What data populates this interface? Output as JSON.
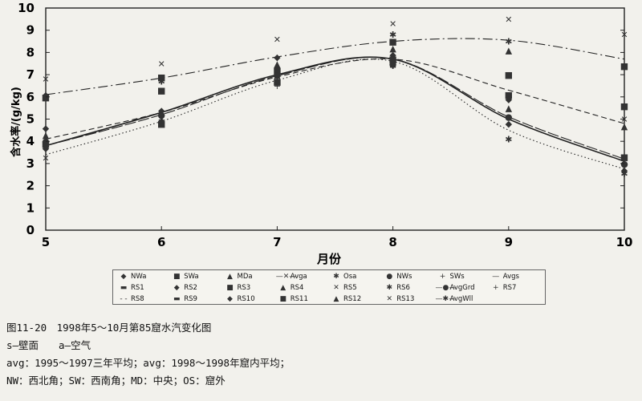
{
  "chart_data": {
    "type": "line",
    "xlabel": "月份",
    "ylabel": "含水率/(g/kg)",
    "x": [
      5,
      6,
      7,
      8,
      9,
      10
    ],
    "xlim": [
      5,
      10
    ],
    "ylim": [
      0,
      10
    ],
    "yticks": [
      0,
      1,
      2,
      3,
      4,
      5,
      6,
      7,
      8,
      9,
      10
    ],
    "xticks": [
      5,
      6,
      7,
      8,
      9,
      10
    ],
    "grid": false,
    "legend_position": "bottom",
    "series": [
      {
        "name": "Avga",
        "style": "dashdot",
        "values": [
          6.1,
          6.85,
          7.8,
          8.5,
          8.55,
          7.7
        ]
      },
      {
        "name": "Avgs",
        "style": "dashed",
        "values": [
          4.1,
          5.3,
          6.9,
          7.7,
          6.3,
          4.8
        ]
      },
      {
        "name": "AvgGrd",
        "style": "solid",
        "values": [
          3.8,
          5.3,
          7.0,
          7.7,
          5.0,
          3.1
        ]
      },
      {
        "name": "AvgWll",
        "style": "longdash",
        "values": [
          3.8,
          5.2,
          6.95,
          7.7,
          5.1,
          3.2
        ]
      },
      {
        "name": "",
        "style": "dotted",
        "values": [
          3.4,
          4.9,
          6.75,
          7.6,
          4.5,
          2.75
        ]
      }
    ],
    "scatter": [
      {
        "x": 5,
        "y": 6.1,
        "m": "◆"
      },
      {
        "x": 5,
        "y": 6.0,
        "m": "■"
      },
      {
        "x": 5,
        "y": 6.8,
        "m": "✕"
      },
      {
        "x": 5,
        "y": 4.6,
        "m": "◆"
      },
      {
        "x": 5,
        "y": 4.3,
        "m": "▲"
      },
      {
        "x": 5,
        "y": 4.0,
        "m": "●"
      },
      {
        "x": 5,
        "y": 3.9,
        "m": "■"
      },
      {
        "x": 5,
        "y": 3.7,
        "m": "◆"
      },
      {
        "x": 5,
        "y": 3.25,
        "m": "✕"
      },
      {
        "x": 6,
        "y": 7.5,
        "m": "✕"
      },
      {
        "x": 6,
        "y": 6.9,
        "m": "■"
      },
      {
        "x": 6,
        "y": 6.7,
        "m": "✱"
      },
      {
        "x": 6,
        "y": 6.3,
        "m": "■"
      },
      {
        "x": 6,
        "y": 5.4,
        "m": "◆"
      },
      {
        "x": 6,
        "y": 5.2,
        "m": "●"
      },
      {
        "x": 6,
        "y": 5.0,
        "m": "▲"
      },
      {
        "x": 6,
        "y": 4.9,
        "m": "✱"
      },
      {
        "x": 6,
        "y": 4.8,
        "m": "■"
      },
      {
        "x": 7,
        "y": 8.6,
        "m": "✕"
      },
      {
        "x": 7,
        "y": 7.8,
        "m": "◆"
      },
      {
        "x": 7,
        "y": 7.5,
        "m": "▲"
      },
      {
        "x": 7,
        "y": 7.2,
        "m": "■"
      },
      {
        "x": 7,
        "y": 7.0,
        "m": "●"
      },
      {
        "x": 7,
        "y": 6.9,
        "m": "✱"
      },
      {
        "x": 7,
        "y": 6.7,
        "m": "■"
      },
      {
        "x": 7,
        "y": 6.5,
        "m": "+"
      },
      {
        "x": 8,
        "y": 9.3,
        "m": "✕"
      },
      {
        "x": 8,
        "y": 8.8,
        "m": "✱"
      },
      {
        "x": 8,
        "y": 8.5,
        "m": "■"
      },
      {
        "x": 8,
        "y": 8.2,
        "m": "▲"
      },
      {
        "x": 8,
        "y": 7.9,
        "m": "◆"
      },
      {
        "x": 8,
        "y": 7.7,
        "m": "■"
      },
      {
        "x": 8,
        "y": 7.5,
        "m": "●"
      },
      {
        "x": 8,
        "y": 7.4,
        "m": "✱"
      },
      {
        "x": 9,
        "y": 9.5,
        "m": "✕"
      },
      {
        "x": 9,
        "y": 8.5,
        "m": "✱"
      },
      {
        "x": 9,
        "y": 8.1,
        "m": "▲"
      },
      {
        "x": 9,
        "y": 7.0,
        "m": "■"
      },
      {
        "x": 9,
        "y": 6.1,
        "m": "■"
      },
      {
        "x": 9,
        "y": 5.9,
        "m": "◆"
      },
      {
        "x": 9,
        "y": 5.5,
        "m": "▲"
      },
      {
        "x": 9,
        "y": 5.1,
        "m": "●"
      },
      {
        "x": 9,
        "y": 4.8,
        "m": "◆"
      },
      {
        "x": 9,
        "y": 4.1,
        "m": "✱"
      },
      {
        "x": 10,
        "y": 8.8,
        "m": "✕"
      },
      {
        "x": 10,
        "y": 7.4,
        "m": "■"
      },
      {
        "x": 10,
        "y": 5.6,
        "m": "■"
      },
      {
        "x": 10,
        "y": 5.0,
        "m": "✕"
      },
      {
        "x": 10,
        "y": 4.7,
        "m": "▲"
      },
      {
        "x": 10,
        "y": 3.3,
        "m": "■"
      },
      {
        "x": 10,
        "y": 3.0,
        "m": "●"
      },
      {
        "x": 10,
        "y": 2.7,
        "m": "◆"
      },
      {
        "x": 10,
        "y": 2.55,
        "m": "✱"
      }
    ],
    "legend": [
      {
        "label": "NWa",
        "marker": "◆"
      },
      {
        "label": "SWa",
        "marker": "■"
      },
      {
        "label": "MDa",
        "marker": "▲"
      },
      {
        "label": "Avga",
        "marker": "—✕—"
      },
      {
        "label": "Osa",
        "marker": "✱"
      },
      {
        "label": "NWs",
        "marker": "●"
      },
      {
        "label": "SWs",
        "marker": "+"
      },
      {
        "label": "Avgs",
        "marker": "—"
      },
      {
        "label": "RS1",
        "marker": "▬"
      },
      {
        "label": "RS2",
        "marker": "◆"
      },
      {
        "label": "RS3",
        "marker": "■"
      },
      {
        "label": "RS4",
        "marker": "▲"
      },
      {
        "label": "RS5",
        "marker": "✕"
      },
      {
        "label": "RS6",
        "marker": "✱"
      },
      {
        "label": "AvgGrd",
        "marker": "—●—"
      },
      {
        "label": "RS7",
        "marker": "+"
      },
      {
        "label": "RS8",
        "marker": "- -"
      },
      {
        "label": "RS9",
        "marker": "▬"
      },
      {
        "label": "RS10",
        "marker": "◆"
      },
      {
        "label": "RS11",
        "marker": "■"
      },
      {
        "label": "RS12",
        "marker": "▲"
      },
      {
        "label": "RS13",
        "marker": "✕"
      },
      {
        "label": "AvgWll",
        "marker": "—✱—"
      }
    ]
  },
  "caption": {
    "line1": "图11-20　1998年5～10月第85窟水汽变化图",
    "line2": "s—壁面　　a—空气",
    "line3": "avg：1995～1997三年平均；avg：1998～1998年窟内平均；",
    "line4": "NW：西北角；SW：西南角；MD：中央；OS：窟外"
  }
}
